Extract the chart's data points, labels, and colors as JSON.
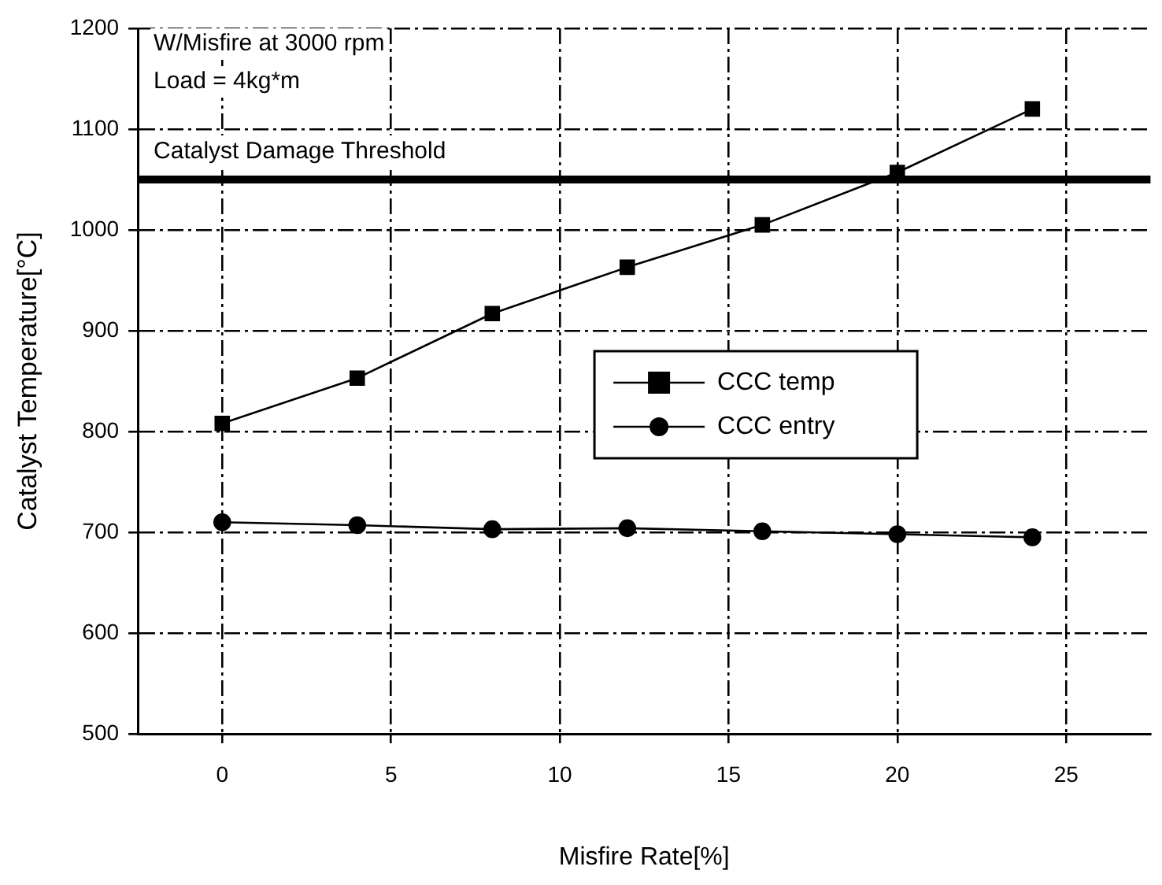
{
  "chart_data": {
    "type": "line",
    "xlabel": "Misfire Rate[%]",
    "ylabel": "Catalyst Temperature[°C]",
    "x": [
      0,
      4,
      8,
      12,
      16,
      20,
      24
    ],
    "series": [
      {
        "name": "CCC temp",
        "color": "#000000",
        "marker": "square",
        "values": [
          808,
          853,
          917,
          963,
          1005,
          1057,
          1120
        ]
      },
      {
        "name": "CCC entry",
        "color": "#000000",
        "marker": "circle",
        "values": [
          710,
          707,
          703,
          704,
          701,
          698,
          695
        ]
      }
    ],
    "xlim": [
      -2.5,
      27.5
    ],
    "xticks": [
      0,
      5,
      10,
      15,
      20,
      25
    ],
    "ylim": [
      500,
      1200
    ],
    "yticks": [
      500,
      600,
      700,
      800,
      900,
      1000,
      1100,
      1200
    ],
    "grid": true,
    "legend": "right",
    "line_style": "solid",
    "ref_lines": [
      {
        "axis": "y",
        "value": 1050,
        "label": "Catalyst Damage Threshold",
        "color": "#000000"
      }
    ],
    "annotations": [
      "W/Misfire at 3000 rpm",
      "Load = 4kg*m"
    ]
  }
}
